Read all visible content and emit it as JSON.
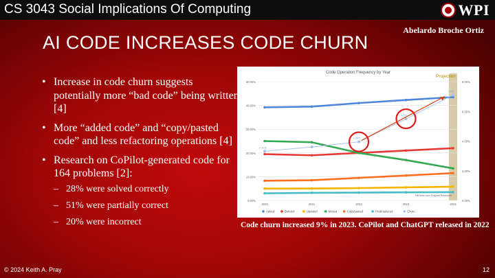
{
  "header": {
    "course_title": "CS 3043 Social Implications Of Computing",
    "logo_text": "WPI"
  },
  "author": "Abelardo Broche Ortiz",
  "slide_title": "AI CODE INCREASES CODE CHURN",
  "bullets": [
    {
      "text": "Increase in code churn suggests potentially more “bad code” being written [4]"
    },
    {
      "text": "More “added code” and “copy/pasted code” and less refactoring operations [4]"
    },
    {
      "text": "Research on CoPilot-generated code for 164 problems [2]:"
    }
  ],
  "sub_bullets": [
    "28% were solved correctly",
    "51% were partially correct",
    "20% were incorrect"
  ],
  "chart_data": {
    "type": "line",
    "title": "Code Operation Frequency by Year",
    "projection_label": "Projection",
    "credit": "GitClear.com Original Research",
    "x_ticks": [
      "2020",
      "2021",
      "2022",
      "2023",
      "2024"
    ],
    "y_ticks": [
      "0.00%",
      "10.00%",
      "20.00%",
      "30.00%",
      "40.00%",
      "50.00%"
    ],
    "y2_ticks": [
      "0.00%",
      "2.00%",
      "4.00%",
      "6.00%",
      "8.00%"
    ],
    "ylim": [
      0,
      50
    ],
    "y2lim": [
      0,
      8
    ],
    "series": [
      {
        "name": "Added",
        "color": "#4e86d9",
        "axis": "left",
        "values": [
          39.2,
          39.5,
          41.0,
          42.3,
          43.5
        ]
      },
      {
        "name": "Deleted",
        "color": "#e53935",
        "axis": "left",
        "values": [
          19.5,
          19.0,
          20.0,
          21.0,
          22.0
        ]
      },
      {
        "name": "Updated",
        "color": "#f5b400",
        "axis": "left",
        "values": [
          5.0,
          5.0,
          5.2,
          5.5,
          5.8
        ]
      },
      {
        "name": "Moved",
        "color": "#34a853",
        "axis": "left",
        "values": [
          25.0,
          24.5,
          20.0,
          17.0,
          13.5
        ]
      },
      {
        "name": "Copy/pasted",
        "color": "#ff6d1f",
        "axis": "left",
        "values": [
          8.3,
          8.5,
          9.5,
          10.5,
          11.5
        ]
      },
      {
        "name": "Find/replaced",
        "color": "#46bdc6",
        "axis": "left",
        "values": [
          3.0,
          3.2,
          3.3,
          3.4,
          3.5
        ]
      },
      {
        "name": "Churn",
        "color": "#a9c4ec",
        "axis": "right",
        "values": [
          3.31,
          3.6,
          3.95,
          5.5,
          7.1
        ],
        "labels": [
          "3.31%",
          "",
          "3.95%",
          "5.5%",
          "7.1%"
        ]
      }
    ],
    "projection_column": "2024",
    "highlight_circles": [
      "2022",
      "2023"
    ]
  },
  "caption": "Code churn increased 9% in 2023. CoPilot and ChatGPT released in 2022",
  "footer": {
    "copyright": "© 2024 Keith A. Pray",
    "page_number": "12"
  }
}
